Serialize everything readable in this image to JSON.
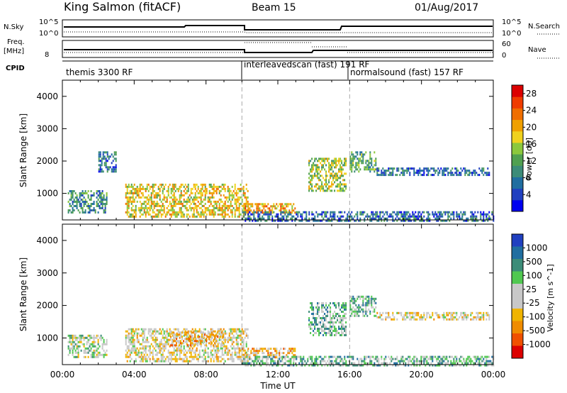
{
  "header": {
    "title": "King Salmon (fitACF)",
    "beam": "Beam 15",
    "date": "01/Aug/2017"
  },
  "top_panels": {
    "nsky_label": "N.Sky",
    "nsky_ticks": [
      "10^5",
      "10^0"
    ],
    "nsearch_label": "N.Search",
    "freq_label": "Freq.",
    "freq_unit": "[MHz]",
    "freq_ticks": [
      "8"
    ],
    "nave_label": "Nave",
    "nave_ticks": [
      "60",
      "0"
    ],
    "cpid_label": "CPID",
    "cpid_segments": [
      {
        "label": "themis 3300 RF",
        "start_hour": 0,
        "end_hour": 10
      },
      {
        "label": "interleavedscan (fast) 191 RF",
        "start_hour": 10,
        "end_hour": 16
      },
      {
        "label": "normalsound (fast) 157 RF",
        "start_hour": 16,
        "end_hour": 24
      }
    ]
  },
  "chart_data": [
    {
      "type": "heatmap",
      "parameter": "Power",
      "ylabel": "Slant Range [km]",
      "xlabel": "Time UT",
      "xlim": [
        0,
        24
      ],
      "ylim": [
        180,
        4500
      ],
      "yticks": [
        "1000",
        "2000",
        "3000",
        "4000"
      ],
      "xticks": [
        "00:00",
        "04:00",
        "08:00",
        "12:00",
        "16:00",
        "20:00",
        "00:00"
      ],
      "colorbar": {
        "label": "Power [dB]",
        "ticks": [
          "4",
          "8",
          "12",
          "16",
          "20",
          "24",
          "28"
        ],
        "range": [
          0,
          30
        ],
        "colors": [
          "#0000f0",
          "#2040c0",
          "#206ea0",
          "#3c8c78",
          "#50a050",
          "#8cc83c",
          "#f0d21e",
          "#f0a000",
          "#f06e00",
          "#f03c00",
          "#dc0000"
        ]
      },
      "regions": [
        {
          "t0": 0.3,
          "t1": 2.5,
          "r0": 400,
          "r1": 1100,
          "level": 9
        },
        {
          "t0": 2.0,
          "t1": 3.0,
          "r0": 1700,
          "r1": 2300,
          "level": 5
        },
        {
          "t0": 3.5,
          "t1": 10.3,
          "r0": 300,
          "r1": 1300,
          "level": 17
        },
        {
          "t0": 10.0,
          "t1": 13.0,
          "r0": 400,
          "r1": 700,
          "level": 22
        },
        {
          "t0": 13.7,
          "t1": 15.8,
          "r0": 1100,
          "r1": 2100,
          "level": 14
        },
        {
          "t0": 16.0,
          "t1": 17.5,
          "r0": 1700,
          "r1": 2300,
          "level": 11
        },
        {
          "t0": 17.5,
          "t1": 23.8,
          "r0": 1550,
          "r1": 1800,
          "level": 7
        },
        {
          "t0": 10.0,
          "t1": 24.0,
          "r0": 180,
          "r1": 450,
          "level": 6
        }
      ]
    },
    {
      "type": "heatmap",
      "parameter": "Velocity",
      "ylabel": "Slant Range [km]",
      "xlabel": "Time UT",
      "xlim": [
        0,
        24
      ],
      "ylim": [
        180,
        4500
      ],
      "yticks": [
        "1000",
        "2000",
        "3000",
        "4000"
      ],
      "xticks": [
        "00:00",
        "04:00",
        "08:00",
        "12:00",
        "16:00",
        "20:00",
        "00:00"
      ],
      "colorbar": {
        "label": "Velocity [m s^-1]",
        "ticks": [
          "1000",
          "500",
          "100",
          "25",
          "-25",
          "-100",
          "-500",
          "-1000"
        ],
        "colors": [
          "#2040c0",
          "#206ea0",
          "#3c8c78",
          "#50c850",
          "#c8c8c8",
          "#c8c8c8",
          "#f0b400",
          "#f08c00",
          "#f05000",
          "#dc0000"
        ]
      },
      "regions": [
        {
          "t0": 0.3,
          "t1": 2.5,
          "r0": 400,
          "r1": 1100,
          "level": 4
        },
        {
          "t0": 3.5,
          "t1": 10.3,
          "r0": 300,
          "r1": 1300,
          "level": 5
        },
        {
          "t0": 6.0,
          "t1": 9.0,
          "r0": 800,
          "r1": 1200,
          "level": 6
        },
        {
          "t0": 10.0,
          "t1": 13.0,
          "r0": 400,
          "r1": 700,
          "level": 6
        },
        {
          "t0": 13.7,
          "t1": 15.8,
          "r0": 1100,
          "r1": 2100,
          "level": 3
        },
        {
          "t0": 16.0,
          "t1": 17.5,
          "r0": 1700,
          "r1": 2300,
          "level": 3
        },
        {
          "t0": 17.5,
          "t1": 23.8,
          "r0": 1550,
          "r1": 1800,
          "level": 5
        },
        {
          "t0": 10.0,
          "t1": 24.0,
          "r0": 180,
          "r1": 450,
          "level": 3
        }
      ]
    }
  ]
}
